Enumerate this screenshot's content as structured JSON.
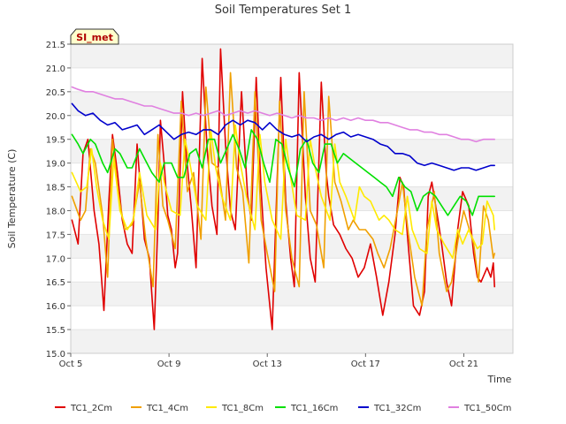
{
  "chart_data": {
    "type": "line",
    "title": "Soil Temperatures Set 1",
    "xlabel": "Time",
    "ylabel": "Soil Temperature (C)",
    "station_label": "SI_met",
    "xlim": [
      0,
      18
    ],
    "ylim": [
      15.0,
      21.5
    ],
    "x_ticks": [
      {
        "x": 0,
        "label": "Oct 5"
      },
      {
        "x": 4,
        "label": "Oct 9"
      },
      {
        "x": 8,
        "label": "Oct 13"
      },
      {
        "x": 12,
        "label": "Oct 17"
      },
      {
        "x": 16,
        "label": "Oct 21"
      }
    ],
    "y_ticks": [
      {
        "v": 15.0,
        "label": "15.0"
      },
      {
        "v": 15.5,
        "label": "15.5"
      },
      {
        "v": 16.0,
        "label": "16.0"
      },
      {
        "v": 16.5,
        "label": "16.5"
      },
      {
        "v": 17.0,
        "label": "17.0"
      },
      {
        "v": 17.5,
        "label": "17.5"
      },
      {
        "v": 18.0,
        "label": "18.0"
      },
      {
        "v": 18.5,
        "label": "18.5"
      },
      {
        "v": 19.0,
        "label": "19.0"
      },
      {
        "v": 19.5,
        "label": "19.5"
      },
      {
        "v": 20.0,
        "label": "20.0"
      },
      {
        "v": 20.5,
        "label": "20.5"
      },
      {
        "v": 21.0,
        "label": "21.0"
      },
      {
        "v": 21.5,
        "label": "21.5"
      }
    ],
    "grid": true,
    "legend_position": "bottom",
    "series": [
      {
        "name": "TC1_2Cm",
        "color": "#e00000",
        "x": [
          0.05,
          0.3,
          0.5,
          0.7,
          0.95,
          1.15,
          1.35,
          1.55,
          1.7,
          1.9,
          2.1,
          2.3,
          2.5,
          2.7,
          3.0,
          3.2,
          3.4,
          3.55,
          3.65,
          3.8,
          3.95,
          4.1,
          4.25,
          4.35,
          4.55,
          4.7,
          4.9,
          5.1,
          5.35,
          5.55,
          5.75,
          5.95,
          6.1,
          6.3,
          6.5,
          6.7,
          6.95,
          7.2,
          7.35,
          7.55,
          7.75,
          7.95,
          8.2,
          8.4,
          8.55,
          8.75,
          8.95,
          9.1,
          9.3,
          9.55,
          9.75,
          9.95,
          10.2,
          10.4,
          10.5,
          10.7,
          10.95,
          11.2,
          11.45,
          11.7,
          11.95,
          12.2,
          12.45,
          12.7,
          12.95,
          13.2,
          13.4,
          13.55,
          13.7,
          13.95,
          14.2,
          14.4,
          14.55,
          14.7,
          14.95,
          15.1,
          15.3,
          15.5,
          15.75,
          15.95,
          16.2,
          16.4,
          16.55,
          16.7,
          16.95,
          17.1,
          17.2,
          17.25
        ],
        "y": [
          17.8,
          17.3,
          19.2,
          19.5,
          18.0,
          17.3,
          15.9,
          18.2,
          19.6,
          18.8,
          17.8,
          17.3,
          17.1,
          19.4,
          17.4,
          17.0,
          15.5,
          17.8,
          19.9,
          19.0,
          17.9,
          17.6,
          16.8,
          17.1,
          20.5,
          19.2,
          18.1,
          16.8,
          21.2,
          19.3,
          18.1,
          17.5,
          21.4,
          19.4,
          18.0,
          17.6,
          20.5,
          18.3,
          17.8,
          20.8,
          18.4,
          16.8,
          15.5,
          18.6,
          20.8,
          18.2,
          17.0,
          16.4,
          20.9,
          18.3,
          17.0,
          16.5,
          20.7,
          18.8,
          18.3,
          17.7,
          17.5,
          17.2,
          17.0,
          16.6,
          16.8,
          17.3,
          16.6,
          15.8,
          16.5,
          17.5,
          18.7,
          18.5,
          17.5,
          16.0,
          15.8,
          16.3,
          18.3,
          18.6,
          17.8,
          17.3,
          16.5,
          16.0,
          17.6,
          18.4,
          18.1,
          17.1,
          16.6,
          16.5,
          16.8,
          16.6,
          16.9,
          16.4
        ]
      },
      {
        "name": "TC1_4Cm",
        "color": "#f0a000",
        "x": [
          0.05,
          0.4,
          0.6,
          0.8,
          1.0,
          1.3,
          1.5,
          1.7,
          1.95,
          2.2,
          2.5,
          2.8,
          3.05,
          3.35,
          3.55,
          3.75,
          3.95,
          4.25,
          4.5,
          4.75,
          5.0,
          5.3,
          5.5,
          5.75,
          6.0,
          6.3,
          6.5,
          6.75,
          7.0,
          7.25,
          7.5,
          7.75,
          8.0,
          8.3,
          8.5,
          8.75,
          9.0,
          9.3,
          9.5,
          9.75,
          10.0,
          10.3,
          10.5,
          10.75,
          11.0,
          11.3,
          11.5,
          11.75,
          12.0,
          12.3,
          12.5,
          12.75,
          13.0,
          13.3,
          13.5,
          13.75,
          14.0,
          14.3,
          14.5,
          14.8,
          15.0,
          15.3,
          15.5,
          15.8,
          16.0,
          16.4,
          16.6,
          16.8,
          17.0,
          17.2,
          17.25
        ],
        "y": [
          18.3,
          17.8,
          18.0,
          19.3,
          19.0,
          17.9,
          16.6,
          19.5,
          18.3,
          17.6,
          17.7,
          18.6,
          17.4,
          16.4,
          19.6,
          18.1,
          17.8,
          17.2,
          20.3,
          18.4,
          18.8,
          17.4,
          20.6,
          19.0,
          18.9,
          17.8,
          20.9,
          18.9,
          18.4,
          16.9,
          20.5,
          17.8,
          17.1,
          16.3,
          20.3,
          18.0,
          17.0,
          16.4,
          20.5,
          18.0,
          17.7,
          16.8,
          20.4,
          18.6,
          18.2,
          17.6,
          17.8,
          17.6,
          17.6,
          17.4,
          17.1,
          16.8,
          17.2,
          18.0,
          18.6,
          17.5,
          16.6,
          16.0,
          17.6,
          18.4,
          17.1,
          16.3,
          16.5,
          17.5,
          18.0,
          17.3,
          16.5,
          18.1,
          17.8,
          17.0,
          17.1
        ]
      },
      {
        "name": "TC1_8Cm",
        "color": "#ffea00",
        "x": [
          0.05,
          0.4,
          0.65,
          0.85,
          1.05,
          1.3,
          1.55,
          1.75,
          2.0,
          2.3,
          2.55,
          2.8,
          3.1,
          3.45,
          3.65,
          3.85,
          4.1,
          4.45,
          4.65,
          4.85,
          5.15,
          5.5,
          5.7,
          5.9,
          6.15,
          6.5,
          6.7,
          6.9,
          7.15,
          7.5,
          7.7,
          7.9,
          8.2,
          8.55,
          8.75,
          8.95,
          9.2,
          9.55,
          9.75,
          9.95,
          10.2,
          10.55,
          10.75,
          10.95,
          11.2,
          11.55,
          11.75,
          11.95,
          12.2,
          12.55,
          12.75,
          12.95,
          13.2,
          13.5,
          13.7,
          13.9,
          14.2,
          14.5,
          14.7,
          14.9,
          15.2,
          15.55,
          15.75,
          15.95,
          16.2,
          16.55,
          16.75,
          16.95,
          17.2,
          17.25
        ],
        "y": [
          18.8,
          18.4,
          18.5,
          19.3,
          18.5,
          17.8,
          17.4,
          19.1,
          18.0,
          17.6,
          17.8,
          18.8,
          17.9,
          17.6,
          19.0,
          18.5,
          18.0,
          17.9,
          19.5,
          19.0,
          18.1,
          17.8,
          19.7,
          18.9,
          18.3,
          17.8,
          19.8,
          19.0,
          18.3,
          17.6,
          19.6,
          18.6,
          17.8,
          17.4,
          19.5,
          18.7,
          17.9,
          17.8,
          19.5,
          18.9,
          18.3,
          17.8,
          19.4,
          18.6,
          18.3,
          17.8,
          18.5,
          18.3,
          18.2,
          17.8,
          17.9,
          17.8,
          17.6,
          17.5,
          18.3,
          17.6,
          17.2,
          17.1,
          18.2,
          17.6,
          17.3,
          17.0,
          17.6,
          17.3,
          17.6,
          17.2,
          17.3,
          18.2,
          17.9,
          17.6
        ]
      },
      {
        "name": "TC1_16Cm",
        "color": "#00e000",
        "x": [
          0.05,
          0.3,
          0.5,
          0.8,
          1.0,
          1.3,
          1.5,
          1.8,
          2.0,
          2.3,
          2.5,
          2.8,
          3.0,
          3.3,
          3.6,
          3.8,
          4.1,
          4.35,
          4.6,
          4.85,
          5.1,
          5.35,
          5.6,
          5.85,
          6.1,
          6.35,
          6.6,
          6.85,
          7.1,
          7.35,
          7.6,
          7.85,
          8.1,
          8.35,
          8.6,
          8.85,
          9.1,
          9.35,
          9.6,
          9.85,
          10.1,
          10.35,
          10.6,
          10.85,
          11.1,
          11.35,
          11.6,
          11.85,
          12.1,
          12.35,
          12.6,
          12.85,
          13.1,
          13.35,
          13.6,
          13.85,
          14.1,
          14.35,
          14.6,
          14.85,
          15.1,
          15.35,
          15.6,
          15.85,
          16.1,
          16.35,
          16.6,
          16.85,
          17.1,
          17.25
        ],
        "y": [
          19.6,
          19.4,
          19.2,
          19.5,
          19.4,
          19.0,
          18.8,
          19.3,
          19.2,
          18.9,
          18.9,
          19.3,
          19.1,
          18.8,
          18.6,
          19.0,
          19.0,
          18.7,
          18.7,
          19.2,
          19.3,
          18.9,
          19.5,
          19.5,
          19.0,
          19.3,
          19.6,
          19.3,
          18.9,
          19.7,
          19.5,
          19.0,
          18.6,
          19.5,
          19.4,
          18.9,
          18.5,
          19.3,
          19.5,
          19.0,
          18.8,
          19.4,
          19.4,
          19.0,
          19.2,
          19.1,
          19.0,
          18.9,
          18.8,
          18.7,
          18.6,
          18.5,
          18.3,
          18.7,
          18.5,
          18.4,
          18.0,
          18.3,
          18.4,
          18.3,
          18.1,
          17.9,
          18.1,
          18.3,
          18.2,
          17.9,
          18.3,
          18.3,
          18.3,
          18.3
        ]
      },
      {
        "name": "TC1_32Cm",
        "color": "#0000cc",
        "x": [
          0.05,
          0.3,
          0.6,
          0.9,
          1.2,
          1.5,
          1.8,
          2.1,
          2.4,
          2.7,
          3.0,
          3.3,
          3.6,
          3.9,
          4.2,
          4.5,
          4.8,
          5.1,
          5.4,
          5.7,
          6.0,
          6.3,
          6.6,
          6.9,
          7.2,
          7.5,
          7.8,
          8.1,
          8.4,
          8.7,
          9.0,
          9.3,
          9.6,
          9.9,
          10.2,
          10.5,
          10.8,
          11.1,
          11.4,
          11.7,
          12.0,
          12.3,
          12.6,
          12.9,
          13.2,
          13.5,
          13.8,
          14.1,
          14.4,
          14.7,
          15.0,
          15.3,
          15.6,
          15.9,
          16.2,
          16.5,
          16.8,
          17.1,
          17.25
        ],
        "y": [
          20.25,
          20.1,
          20.0,
          20.05,
          19.9,
          19.8,
          19.85,
          19.7,
          19.75,
          19.8,
          19.6,
          19.7,
          19.8,
          19.65,
          19.5,
          19.6,
          19.65,
          19.6,
          19.7,
          19.7,
          19.6,
          19.8,
          19.9,
          19.8,
          19.9,
          19.85,
          19.7,
          19.85,
          19.7,
          19.6,
          19.55,
          19.6,
          19.45,
          19.55,
          19.6,
          19.5,
          19.6,
          19.65,
          19.55,
          19.6,
          19.55,
          19.5,
          19.4,
          19.35,
          19.2,
          19.2,
          19.15,
          19.0,
          18.95,
          19.0,
          18.95,
          18.9,
          18.85,
          18.9,
          18.9,
          18.85,
          18.9,
          18.95,
          18.95
        ]
      },
      {
        "name": "TC1_50Cm",
        "color": "#e080e0",
        "x": [
          0.05,
          0.3,
          0.6,
          0.9,
          1.2,
          1.5,
          1.8,
          2.1,
          2.4,
          2.7,
          3.0,
          3.3,
          3.6,
          3.9,
          4.2,
          4.5,
          4.8,
          5.1,
          5.4,
          5.7,
          6.0,
          6.3,
          6.6,
          6.9,
          7.2,
          7.5,
          7.8,
          8.1,
          8.4,
          8.7,
          9.0,
          9.3,
          9.6,
          9.9,
          10.2,
          10.5,
          10.8,
          11.1,
          11.4,
          11.7,
          12.0,
          12.3,
          12.6,
          12.9,
          13.2,
          13.5,
          13.8,
          14.1,
          14.4,
          14.7,
          15.0,
          15.3,
          15.6,
          15.9,
          16.2,
          16.5,
          16.8,
          17.1,
          17.25
        ],
        "y": [
          20.6,
          20.55,
          20.5,
          20.5,
          20.45,
          20.4,
          20.35,
          20.35,
          20.3,
          20.25,
          20.2,
          20.2,
          20.15,
          20.1,
          20.05,
          20.05,
          20.0,
          20.05,
          20.0,
          20.05,
          20.1,
          20.0,
          20.05,
          20.1,
          20.05,
          20.1,
          20.05,
          20.0,
          20.05,
          20.0,
          19.95,
          20.0,
          19.95,
          19.95,
          19.9,
          19.95,
          19.9,
          19.95,
          19.9,
          19.95,
          19.9,
          19.9,
          19.85,
          19.85,
          19.8,
          19.75,
          19.7,
          19.7,
          19.65,
          19.65,
          19.6,
          19.6,
          19.55,
          19.5,
          19.5,
          19.45,
          19.5,
          19.5,
          19.5
        ]
      }
    ]
  }
}
